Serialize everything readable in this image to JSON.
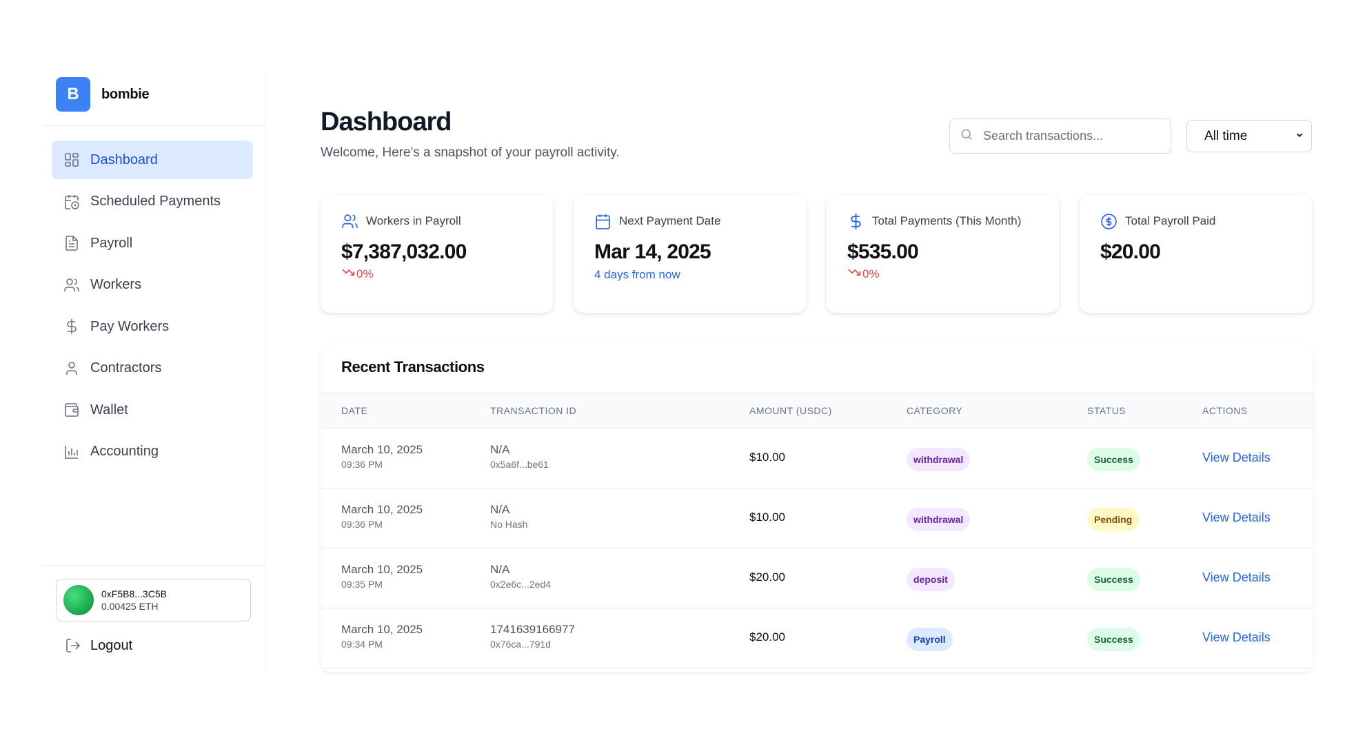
{
  "brand": {
    "logo_letter": "B",
    "name": "bombie",
    "color": "#3b82f6"
  },
  "sidebar": {
    "items": [
      {
        "label": "Dashboard",
        "icon": "dashboard-icon",
        "active": true
      },
      {
        "label": "Scheduled Payments",
        "icon": "calendar-clock-icon",
        "active": false
      },
      {
        "label": "Payroll",
        "icon": "document-icon",
        "active": false
      },
      {
        "label": "Workers",
        "icon": "users-icon",
        "active": false
      },
      {
        "label": "Pay Workers",
        "icon": "dollar-icon",
        "active": false
      },
      {
        "label": "Contractors",
        "icon": "user-icon",
        "active": false
      },
      {
        "label": "Wallet",
        "icon": "wallet-icon",
        "active": false
      },
      {
        "label": "Accounting",
        "icon": "bar-chart-icon",
        "active": false
      }
    ],
    "wallet": {
      "address": "0xF5B8...3C5B",
      "balance": "0.00425 ETH"
    },
    "logout_label": "Logout"
  },
  "header": {
    "title": "Dashboard",
    "subtitle": "Welcome, Here's a snapshot of your payroll activity.",
    "search_placeholder": "Search transactions...",
    "range_value": "All time"
  },
  "cards": [
    {
      "label": "Workers in Payroll",
      "icon": "users-icon",
      "value": "$7,387,032.00",
      "delta": "0%"
    },
    {
      "label": "Next Payment Date",
      "icon": "calendar-icon",
      "value": "Mar 14, 2025",
      "note": "4 days from now"
    },
    {
      "label": "Total Payments (This Month)",
      "icon": "dollar-icon",
      "value": "$535.00",
      "delta": "0%"
    },
    {
      "label": "Total Payroll Paid",
      "icon": "dollar-circle-icon",
      "value": "$20.00"
    }
  ],
  "transactions": {
    "title": "Recent Transactions",
    "columns": [
      "DATE",
      "TRANSACTION ID",
      "AMOUNT (USDC)",
      "CATEGORY",
      "STATUS",
      "ACTIONS"
    ],
    "rows": [
      {
        "date": "March 10, 2025",
        "time": "09:36 PM",
        "tx_id": "N/A",
        "hash": "0x5a6f...be61",
        "amount": "$10.00",
        "category": "withdrawal",
        "category_style": "purple",
        "status": "Success",
        "status_style": "green",
        "action": "View Details"
      },
      {
        "date": "March 10, 2025",
        "time": "09:36 PM",
        "tx_id": "N/A",
        "hash": "No Hash",
        "amount": "$10.00",
        "category": "withdrawal",
        "category_style": "purple",
        "status": "Pending",
        "status_style": "yellow",
        "action": "View Details"
      },
      {
        "date": "March 10, 2025",
        "time": "09:35 PM",
        "tx_id": "N/A",
        "hash": "0x2e6c...2ed4",
        "amount": "$20.00",
        "category": "deposit",
        "category_style": "purple",
        "status": "Success",
        "status_style": "green",
        "action": "View Details"
      },
      {
        "date": "March 10, 2025",
        "time": "09:34 PM",
        "tx_id": "1741639166977",
        "hash": "0x76ca...791d",
        "amount": "$20.00",
        "category": "Payroll",
        "category_style": "blue",
        "status": "Success",
        "status_style": "green",
        "action": "View Details"
      }
    ]
  },
  "colors": {
    "accent": "#2563eb",
    "active_bg": "#dbeafe",
    "negative": "#ef4444"
  }
}
